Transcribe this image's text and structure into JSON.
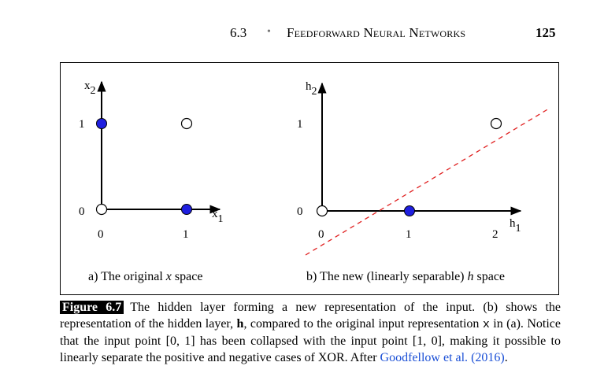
{
  "header": {
    "section": "6.3",
    "separator": "•",
    "title": "Feedforward Neural Networks",
    "page": "125"
  },
  "panel_a": {
    "axis_x_label": "x",
    "axis_x_sub": "1",
    "axis_y_label": "x",
    "axis_y_sub": "2",
    "tick_x": [
      "0",
      "1"
    ],
    "tick_y": [
      "0",
      "1"
    ],
    "caption_prefix": "a) The original ",
    "caption_var": "x",
    "caption_suffix": " space"
  },
  "panel_b": {
    "axis_x_label": "h",
    "axis_x_sub": "1",
    "axis_y_label": "h",
    "axis_y_sub": "2",
    "tick_x": [
      "0",
      "1",
      "2"
    ],
    "tick_y": [
      "0",
      "1"
    ],
    "caption_prefix": "b) The new (linearly separable) ",
    "caption_var": "h",
    "caption_suffix": " space"
  },
  "caption": {
    "fig_label": "Figure 6.7",
    "t1": "The hidden layer forming a new representation of the input. (b) shows the representation of the hidden layer, ",
    "h_bold": "h",
    "t2": ", compared to the original input representation ",
    "x_mono": "x",
    "t3": " in (a). Notice that the input point [0, 1] has been collapsed with the input point [1, 0], making it possible to linearly separate the positive and negative cases of XOR. After ",
    "cite": "Goodfellow et al.",
    "cite_year": "(2016)",
    "t4": "."
  },
  "colors": {
    "filled_point": "#1f1fe0",
    "separator_line": "#e02020",
    "link": "#1a4fd6"
  }
}
